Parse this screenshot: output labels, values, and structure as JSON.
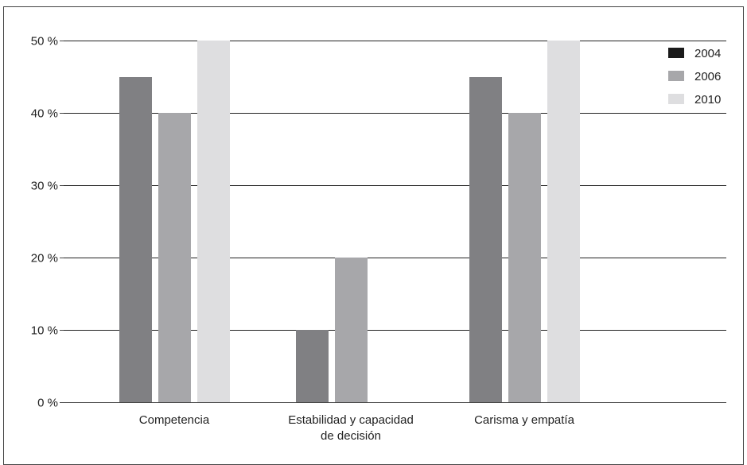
{
  "chart_data": {
    "type": "bar",
    "categories": [
      [
        "Competencia"
      ],
      [
        "Estabilidad y capacidad",
        "de decisión"
      ],
      [
        "Carisma y empatía"
      ]
    ],
    "series": [
      {
        "name": "2004",
        "color": "#1a1a1a",
        "bar_color": "#808083",
        "values": [
          45,
          10,
          45
        ]
      },
      {
        "name": "2006",
        "color": "#a7a7aa",
        "bar_color": "#a7a7aa",
        "values": [
          40,
          20,
          40
        ]
      },
      {
        "name": "2010",
        "color": "#dedee0",
        "bar_color": "#dedee0",
        "values": [
          50,
          0,
          50
        ]
      }
    ],
    "yticks": [
      0,
      10,
      20,
      30,
      40,
      50
    ],
    "ytick_suffix": " %",
    "ylim": [
      0,
      50
    ],
    "grid": true,
    "legend_position": "top-right"
  }
}
